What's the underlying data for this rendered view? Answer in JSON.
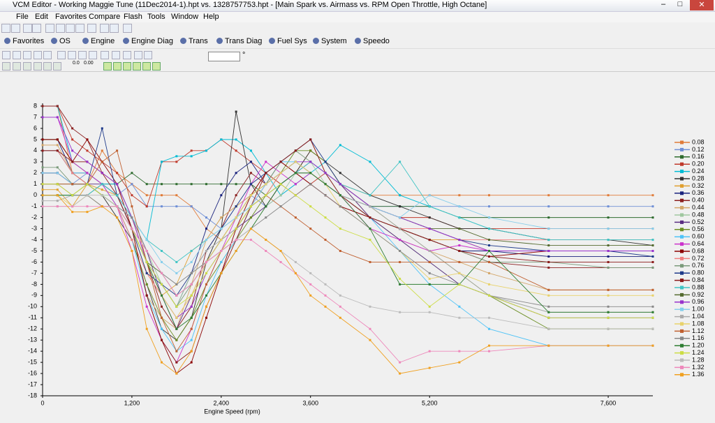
{
  "window": {
    "title": "VCM Editor - Working Maggie Tune (11Dec2014-1).hpt  vs.  1328757753.hpt - [Main Spark vs. Airmass vs. RPM Open Throttle, High Octane]"
  },
  "menu": [
    "File",
    "Edit",
    "Favorites",
    "Compare",
    "Flash",
    "Tools",
    "Window",
    "Help"
  ],
  "nav_toolbar": [
    "Favorites",
    "OS",
    "Engine",
    "Engine Diag",
    "Trans",
    "Trans Diag",
    "Fuel Sys",
    "System",
    "Speedo"
  ],
  "format_buttons": [
    "0.0",
    "0.00"
  ],
  "input_unit": "°",
  "chart_data": {
    "type": "line",
    "x_label": "Engine Speed (rpm)",
    "x": [
      0,
      200,
      400,
      600,
      800,
      1000,
      1200,
      1400,
      1600,
      1800,
      2000,
      2200,
      2400,
      2600,
      2800,
      3000,
      3200,
      3400,
      3600,
      3800,
      4000,
      4400,
      4800,
      5200,
      5600,
      6000,
      6800,
      7600,
      8200
    ],
    "xlim": [
      0,
      8200
    ],
    "xticks": [
      0,
      {
        "value": 1200,
        "label": "1,200"
      },
      {
        "value": 2400,
        "label": "2,400"
      },
      {
        "value": 3600,
        "label": "3,600"
      },
      {
        "value": 5200,
        "label": "5,200"
      },
      {
        "value": 7600,
        "label": "7,600"
      }
    ],
    "ylim": [
      -18,
      8
    ],
    "yticks": [
      -18,
      -17,
      -16,
      -15,
      -14,
      -13,
      -12,
      -11,
      -10,
      -9,
      -8,
      -7,
      -6,
      -5,
      -4,
      -3,
      -2,
      -1,
      0,
      1,
      2,
      3,
      4,
      5,
      6,
      7,
      8
    ],
    "legend": "right",
    "series": [
      {
        "name": "0.08",
        "color": "#e07b39",
        "values": [
          8,
          8,
          2,
          1,
          4,
          2,
          1,
          0,
          0,
          0,
          -1,
          -3,
          -4,
          -2,
          0,
          2,
          1,
          2,
          4,
          3,
          1,
          0,
          0,
          0,
          0,
          0,
          0,
          0,
          0
        ]
      },
      {
        "name": "0.12",
        "color": "#6f8fd6",
        "values": [
          2,
          2,
          1,
          2,
          1,
          0,
          1,
          -1,
          -1,
          -1,
          -1,
          -2,
          -3,
          -1,
          0,
          -1,
          0,
          1,
          2,
          1,
          0,
          -1,
          -1,
          -1,
          -1,
          -1,
          -1,
          -1,
          -1
        ]
      },
      {
        "name": "0.16",
        "color": "#2e6b2e",
        "values": [
          0,
          0,
          0,
          0,
          1,
          1,
          2,
          1,
          1,
          1,
          1,
          1,
          1,
          1,
          1,
          0,
          1,
          2,
          2,
          1,
          0,
          -1,
          -1,
          -1,
          -2,
          -2,
          -2,
          -2,
          -2
        ]
      },
      {
        "name": "0.20",
        "color": "#c0392b",
        "values": [
          8,
          8,
          5,
          4,
          3,
          2,
          0,
          -1,
          3,
          3,
          4,
          4,
          5,
          4,
          3,
          2,
          1,
          0,
          1,
          2,
          1,
          -1,
          -2,
          -2,
          -3,
          -3,
          -3,
          -3,
          -3
        ]
      },
      {
        "name": "0.24",
        "color": "#00bcd4",
        "values": [
          8,
          8,
          3,
          2,
          1,
          1,
          -2,
          -4,
          3,
          3.5,
          3.5,
          4,
          5,
          5,
          4,
          2,
          0,
          1,
          2,
          3,
          4.5,
          3,
          0,
          -1,
          -2,
          -3,
          -4,
          -4,
          -4
        ]
      },
      {
        "name": "0.28",
        "color": "#333333",
        "values": [
          4,
          4,
          2,
          1,
          0,
          -2,
          -4,
          -8,
          -12,
          -13,
          -11,
          -6,
          -3,
          7.5,
          1,
          -1,
          1,
          2,
          4,
          3,
          2,
          0,
          -1,
          -2,
          -3,
          -3,
          -4,
          -4,
          -4.5
        ]
      },
      {
        "name": "0.32",
        "color": "#e0a030",
        "values": [
          0.5,
          0.5,
          -1,
          1,
          0.5,
          0,
          -3,
          -7,
          -9,
          -8,
          -5,
          -4,
          -2,
          -1,
          0,
          1,
          2,
          3,
          2,
          1,
          0,
          -2,
          -3,
          -4,
          -4,
          -5,
          -5,
          -5,
          -5
        ]
      },
      {
        "name": "0.36",
        "color": "#1a237e",
        "values": [
          5,
          5,
          2,
          2,
          1,
          0,
          -3,
          -6,
          -8,
          -10,
          -7,
          -3,
          0,
          2,
          3,
          1,
          2,
          3,
          2,
          1,
          0,
          -2,
          -3,
          -4,
          -5,
          -5,
          -5.5,
          -5.5,
          -5.5
        ]
      },
      {
        "name": "0.40",
        "color": "#8b2020",
        "values": [
          8,
          8,
          6,
          5,
          2,
          1,
          -2,
          -6,
          -10,
          -12,
          -10,
          -5,
          -3,
          0,
          2,
          1,
          3,
          2,
          1,
          0,
          -1,
          -2,
          -3,
          -4,
          -5,
          -6,
          -6.5,
          -6.5,
          -6.5
        ]
      },
      {
        "name": "0.44",
        "color": "#d4a76a",
        "values": [
          4.5,
          4.5,
          2,
          2,
          1,
          0,
          -3,
          -9,
          -11,
          -12,
          -8,
          -4,
          -2,
          -1,
          0,
          1,
          3,
          4,
          5,
          2,
          1,
          -2,
          -4,
          -5,
          -6,
          -7,
          -8.5,
          -8.5,
          -8.5
        ]
      },
      {
        "name": "0.48",
        "color": "#9fc79f",
        "values": [
          2,
          2,
          1,
          1,
          0,
          0,
          -2,
          -5,
          -8,
          -10,
          -7,
          -6,
          -5,
          -4,
          -3,
          -1,
          0,
          2,
          3,
          1,
          0,
          -2,
          -4,
          -6,
          -8,
          -9,
          -10.5,
          -10.5,
          -10.5
        ]
      },
      {
        "name": "0.52",
        "color": "#5a2d82",
        "values": [
          2,
          2,
          1,
          1,
          1,
          0,
          -2,
          -5,
          -9,
          -12,
          -9,
          -6,
          -4,
          -3,
          -2,
          -1,
          1,
          2,
          3,
          2,
          1,
          -2,
          -4,
          -6,
          -8,
          -9,
          -11,
          -11,
          -11
        ]
      },
      {
        "name": "0.56",
        "color": "#6b8e23",
        "values": [
          5,
          5,
          3,
          2,
          1,
          -1,
          -4,
          -8,
          -11,
          -13,
          -11,
          -8,
          -6,
          -4,
          -2,
          0,
          2,
          4,
          4,
          3,
          1,
          -1,
          -3,
          -5,
          -7,
          -9,
          -12,
          -12,
          -12
        ]
      },
      {
        "name": "0.60",
        "color": "#4fc3f7",
        "values": [
          4,
          4,
          2,
          2,
          1,
          -1,
          -4,
          -9,
          -12,
          -14,
          -13,
          -9,
          -6,
          -4,
          -1,
          1,
          3,
          3,
          2,
          1,
          0,
          -2,
          -5,
          -8,
          -10,
          -12,
          -13.5,
          -13.5,
          -13.5
        ]
      },
      {
        "name": "0.64",
        "color": "#cc33cc",
        "values": [
          7,
          7,
          3,
          2,
          1,
          -1,
          -5,
          -10,
          -13,
          -15,
          -12,
          -8,
          -5,
          -2,
          1,
          3,
          2,
          1,
          2,
          1,
          0,
          -3,
          -4,
          -5,
          -4.5,
          -5,
          -5,
          -5,
          -5
        ]
      },
      {
        "name": "0.68",
        "color": "#8b0000",
        "values": [
          5,
          5,
          3,
          5,
          3,
          1,
          -3,
          -9,
          -13,
          -16,
          -15,
          -11,
          -7,
          -3,
          0,
          2,
          3,
          2,
          1,
          0,
          -1,
          -2,
          -3,
          -4,
          -5,
          -5.5,
          -5,
          -5,
          -5
        ]
      },
      {
        "name": "0.72",
        "color": "#f08080",
        "values": [
          4,
          4,
          2,
          1,
          0,
          -1,
          -4,
          -7,
          -9,
          -11,
          -9,
          -6,
          -4,
          -2,
          -1,
          0,
          2,
          3,
          2,
          1,
          0,
          -2,
          -3,
          -3,
          -4,
          -4,
          -4,
          -4,
          -4
        ]
      },
      {
        "name": "0.76",
        "color": "#7a9a7a",
        "values": [
          2.5,
          2.5,
          1,
          1,
          0,
          -1,
          -3,
          -6,
          -8,
          -10,
          -8,
          -6,
          -4,
          -3,
          -1,
          1,
          3,
          4,
          3,
          2,
          0,
          -2,
          -3,
          -4,
          -5,
          -6,
          -6,
          -6.5,
          -6.5
        ]
      },
      {
        "name": "0.80",
        "color": "#1e3a8a",
        "values": [
          2,
          2,
          1,
          1,
          6,
          0,
          -3,
          -7,
          -8,
          -9,
          -7,
          -5,
          -3,
          -1,
          1,
          2,
          3,
          4,
          5,
          3,
          1,
          -1,
          -2,
          -3,
          -4,
          -4.5,
          -5,
          -5,
          -5.5
        ]
      },
      {
        "name": "0.84",
        "color": "#8b1a1a",
        "values": [
          4,
          4,
          3,
          3,
          2,
          0,
          -3,
          -9,
          -13,
          -15,
          -14,
          -10,
          -7,
          -4,
          -1,
          2,
          3,
          4,
          5,
          2,
          0,
          -2,
          -3,
          -4,
          -5,
          -5.5,
          -6,
          -6,
          -6
        ]
      },
      {
        "name": "0.88",
        "color": "#40c4c4",
        "values": [
          0,
          0,
          0,
          0,
          1,
          0,
          -2,
          -4,
          -5,
          -6,
          -5,
          -4,
          -3,
          -2,
          -1,
          0,
          1,
          2,
          3,
          2,
          1,
          0,
          3,
          -1,
          -2,
          -3,
          -4,
          -4,
          -4
        ]
      },
      {
        "name": "0.92",
        "color": "#556b2f",
        "values": [
          1,
          1,
          1,
          1,
          0,
          -1,
          -3,
          -6,
          -7,
          -9,
          -8,
          -6,
          -4,
          -2,
          0,
          1,
          2,
          3,
          2,
          1,
          0,
          -1,
          -2,
          -3,
          -3,
          -4,
          -4.5,
          -4.5,
          -4.5
        ]
      },
      {
        "name": "0.96",
        "color": "#9933cc",
        "values": [
          7,
          7,
          4,
          3,
          2,
          1,
          -2,
          -6,
          -9,
          -11,
          -10,
          -7,
          -5,
          -3,
          -1,
          1,
          2,
          3,
          3,
          2,
          1,
          -1,
          -2,
          -3,
          -4,
          -5,
          -5,
          -5,
          -5
        ]
      },
      {
        "name": "1.00",
        "color": "#87ceeb",
        "values": [
          2,
          2,
          1,
          1,
          0,
          -1,
          -2,
          -4,
          -6,
          -7,
          -6,
          -4,
          -3,
          -2,
          -1,
          1,
          2,
          3,
          2,
          1,
          0,
          -1,
          -2,
          0,
          -1,
          -2,
          -3,
          -3,
          -3
        ]
      },
      {
        "name": "1.04",
        "color": "#aaaaaa",
        "values": [
          -0.5,
          -0.5,
          0,
          0,
          -1,
          -1,
          -3,
          -5,
          -7,
          -8,
          -7,
          -5,
          -4,
          -3,
          -1,
          0,
          1,
          2,
          2,
          1,
          0,
          -1,
          -3,
          -5,
          -7,
          -9,
          -10.5,
          -10.5,
          -10.5
        ]
      },
      {
        "name": "1.08",
        "color": "#e8d26a",
        "values": [
          0,
          0,
          -1,
          0,
          -1,
          -1,
          -3,
          -6,
          -9,
          -11,
          -9,
          -6,
          -4,
          -2,
          0,
          1,
          2,
          3,
          2,
          1,
          -1,
          -3,
          -5,
          -7.5,
          -7,
          -8,
          -9,
          -9,
          -9
        ]
      },
      {
        "name": "1.12",
        "color": "#c06030",
        "values": [
          1,
          1,
          1,
          1,
          3,
          4,
          -1,
          -6,
          -11,
          -14,
          -12,
          -8,
          -5,
          -3,
          -1,
          0,
          -1,
          -2,
          -3,
          -4,
          -5,
          -6,
          -6,
          -6,
          -6,
          -6,
          -8.5,
          -8.5,
          -8.5
        ]
      },
      {
        "name": "1.16",
        "color": "#888888",
        "values": [
          1,
          1,
          0,
          0,
          -1,
          -1,
          -2,
          -5,
          -7,
          -8,
          -7,
          -6,
          -5,
          -4,
          -3,
          -2,
          -1,
          0,
          1,
          0,
          -1,
          -3,
          -5,
          -7,
          -8,
          -9,
          -10,
          -10,
          -10
        ]
      },
      {
        "name": "1.20",
        "color": "#2e7d32",
        "values": [
          0,
          0,
          0,
          1,
          0,
          -1,
          -3,
          -6,
          -9,
          -12,
          -11,
          -9,
          -7,
          -5,
          -3,
          -1,
          1,
          2,
          2,
          1,
          0,
          -3,
          -8,
          -8,
          -8,
          -5,
          -10.5,
          -10.5,
          -10.5
        ]
      },
      {
        "name": "1.24",
        "color": "#ccdd44",
        "values": [
          1,
          1,
          0,
          1,
          0,
          -1,
          -3,
          -6,
          -8,
          -10,
          -9,
          -7,
          -5,
          -3,
          -1,
          0,
          1,
          0,
          -1,
          -2,
          -3,
          -4,
          -7.5,
          -10,
          -8,
          -9,
          -11,
          -11,
          -11
        ]
      },
      {
        "name": "1.28",
        "color": "#bbbbbb",
        "values": [
          -1,
          -1,
          -1,
          0,
          0,
          -1,
          -3,
          -5,
          -7,
          -9,
          -8,
          -6,
          -5,
          -4,
          -3,
          -4,
          -5,
          -6,
          -7,
          -8,
          -9,
          -10,
          -10.5,
          -10.5,
          -11,
          -11,
          -12,
          -12,
          -12
        ]
      },
      {
        "name": "1.32",
        "color": "#ee88bb",
        "values": [
          -1,
          -1,
          -1,
          -1,
          -1,
          -1,
          -3,
          -5,
          -7,
          -9,
          -8,
          -6,
          -5,
          -4,
          -4,
          -5,
          -6,
          -7,
          -8,
          -9,
          -10,
          -12,
          -15,
          -14,
          -14,
          -14,
          -13.5,
          -13.5,
          -13.5
        ]
      },
      {
        "name": "1.36",
        "color": "#f0a020",
        "values": [
          0,
          0,
          -1.5,
          -1.5,
          -1,
          -2,
          -5,
          -12,
          -15,
          -16,
          -14,
          -10,
          -7,
          -5,
          -3,
          -4,
          -5,
          -7,
          -9,
          -10,
          -11,
          -13,
          -16,
          -15.5,
          -15,
          -13.5,
          -13.5,
          -13.5,
          -13.5
        ]
      }
    ]
  }
}
